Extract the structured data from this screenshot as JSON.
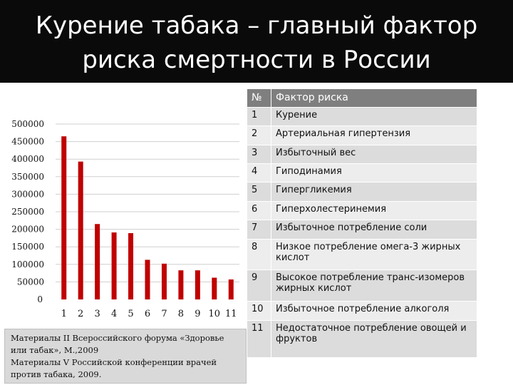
{
  "slide": {
    "title": "Курение табака – главный фактор риска смертности в России"
  },
  "chart_data": {
    "type": "bar",
    "categories": [
      "1",
      "2",
      "3",
      "4",
      "5",
      "6",
      "7",
      "8",
      "9",
      "10",
      "11"
    ],
    "values": [
      465000,
      393000,
      215000,
      191000,
      189000,
      113000,
      102000,
      83000,
      83000,
      62000,
      57000
    ],
    "ylim": [
      0,
      500000
    ],
    "yticks": [
      0,
      50000,
      100000,
      150000,
      200000,
      250000,
      300000,
      350000,
      400000,
      450000,
      500000
    ],
    "grid": true,
    "bar_color": "#c00000"
  },
  "table": {
    "header_num": "№",
    "header_factor": "Фактор риска",
    "rows": [
      {
        "num": "1",
        "factor": "Курение"
      },
      {
        "num": "2",
        "factor": "Артериальная гипертензия"
      },
      {
        "num": "3",
        "factor": "Избыточный вес"
      },
      {
        "num": "4",
        "factor": "Гиподинамия"
      },
      {
        "num": "5",
        "factor": "Гипергликемия"
      },
      {
        "num": "6",
        "factor": "Гиперхолестеринемия"
      },
      {
        "num": "7",
        "factor": "Избыточное потребление соли"
      },
      {
        "num": "8",
        "factor": "Низкое потребление омега-3 жирных кислот"
      },
      {
        "num": "9",
        "factor": "Высокое потребление транс-изомеров жирных кислот"
      },
      {
        "num": "10",
        "factor": "Избыточное потребление алкоголя"
      },
      {
        "num": "11",
        "factor": "Недостаточное потребление овощей и фруктов"
      }
    ]
  },
  "source": {
    "text": "Материалы II Всероссийского форума «Здоровье или табак», М.,2009\nМатериалы V Российской конференции врачей против табака, 2009."
  },
  "colors": {
    "bar": "#c00000",
    "table_header": "#7f7f7f",
    "row_odd": "#dcdcdc",
    "row_even": "#ededed"
  }
}
